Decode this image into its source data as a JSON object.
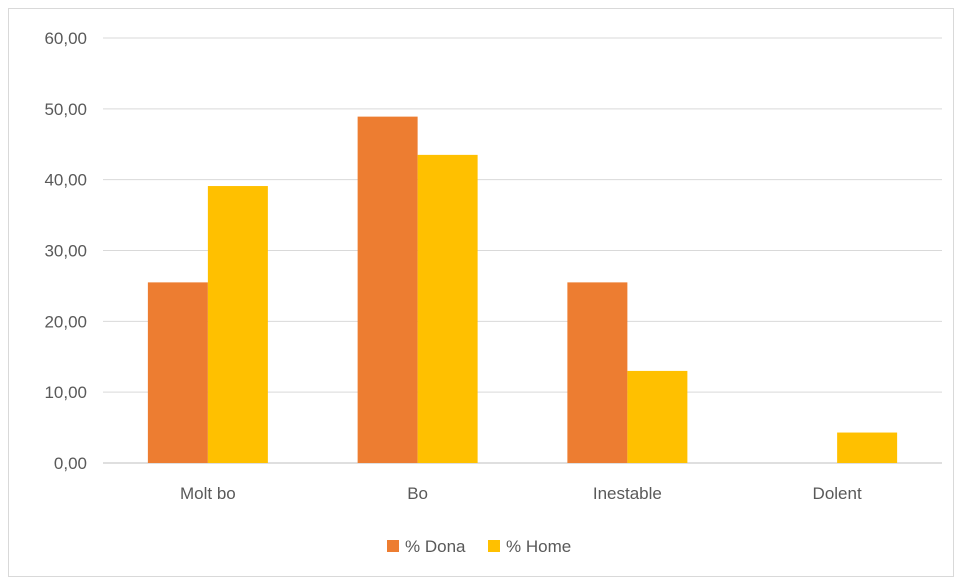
{
  "chart_data": {
    "type": "bar",
    "title": "",
    "xlabel": "",
    "ylabel": "",
    "categories": [
      "Molt bo",
      "Bo",
      "Inestable",
      "Dolent"
    ],
    "series": [
      {
        "name": "% Dona",
        "color": "#ED7D31",
        "values": [
          25.5,
          48.9,
          25.5,
          0.0
        ]
      },
      {
        "name": "% Home",
        "color": "#FFC000",
        "values": [
          39.1,
          43.5,
          13.0,
          4.3
        ]
      }
    ],
    "ylim": [
      0,
      60
    ],
    "yticks": [
      0,
      10,
      20,
      30,
      40,
      50,
      60
    ],
    "ytick_labels": [
      "0,00",
      "10,00",
      "20,00",
      "30,00",
      "40,00",
      "50,00",
      "60,00"
    ],
    "grid": true,
    "legend_position": "bottom"
  }
}
